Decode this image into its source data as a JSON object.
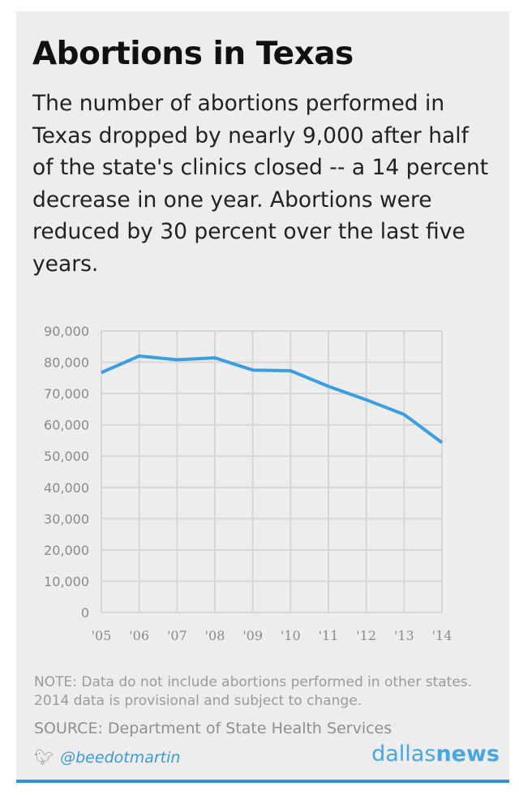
{
  "title": "Abortions in Texas",
  "subtitle": "The number of abortions performed in Texas dropped by nearly 9,000 after half of the state's clinics closed -- a 14 percent decrease in one year. Abortions were reduced by 30 percent over the last five years.",
  "note": "NOTE: Data do not include abortions performed in other states. 2014 data is provisional and subject to change.",
  "source": "SOURCE: Department of State Health Services",
  "credit": {
    "icon": "twitter-bird-icon",
    "handle": "@beedotmartin"
  },
  "logo": {
    "part1": "dallas",
    "part2": "news"
  },
  "colors": {
    "line": "#3a9ee0",
    "grid": "#d6d6d6",
    "accent": "#2f93d6"
  },
  "chart_data": {
    "type": "line",
    "categories": [
      "'05",
      "'06",
      "'07",
      "'08",
      "'09",
      "'10",
      "'11",
      "'12",
      "'13",
      "'14"
    ],
    "values": [
      76700,
      82000,
      80800,
      81400,
      77500,
      77300,
      72300,
      68000,
      63300,
      54300
    ],
    "ylim": [
      0,
      90000
    ],
    "yticks": [
      0,
      10000,
      20000,
      30000,
      40000,
      50000,
      60000,
      70000,
      80000,
      90000
    ],
    "ytick_labels": [
      "0",
      "10,000",
      "20,000",
      "30,000",
      "40,000",
      "50,000",
      "60,000",
      "70,000",
      "80,000",
      "90,000"
    ],
    "grid": true
  }
}
